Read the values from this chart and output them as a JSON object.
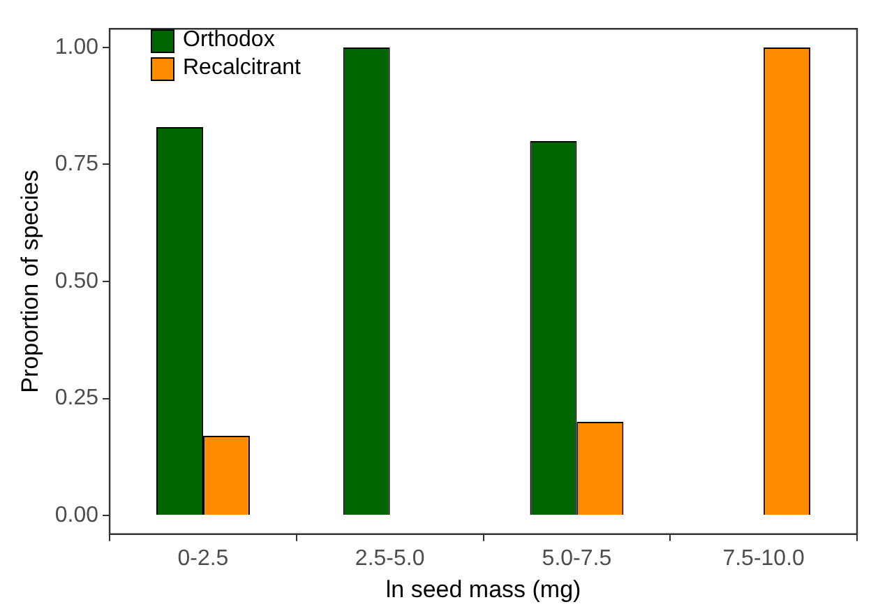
{
  "chart_data": {
    "type": "bar",
    "xlabel": "ln seed mass (mg)",
    "ylabel": "Proportion of species",
    "categories": [
      "0-2.5",
      "2.5-5.0",
      "5.0-7.5",
      "7.5-10.0"
    ],
    "series": [
      {
        "name": "Orthodox",
        "color": "#006400",
        "values": [
          0.83,
          1.0,
          0.8,
          null
        ]
      },
      {
        "name": "Recalcitrant",
        "color": "#ff8c00",
        "values": [
          0.17,
          null,
          0.2,
          1.0
        ]
      }
    ],
    "ylim": [
      -0.04,
      1.04
    ],
    "yticks": [
      {
        "value": 0,
        "label": "0.00"
      },
      {
        "value": 0.25,
        "label": "0.25"
      },
      {
        "value": 0.5,
        "label": "0.50"
      },
      {
        "value": 0.75,
        "label": "0.75"
      },
      {
        "value": 1,
        "label": "1.00"
      }
    ],
    "grid": false,
    "legend": "top left"
  }
}
